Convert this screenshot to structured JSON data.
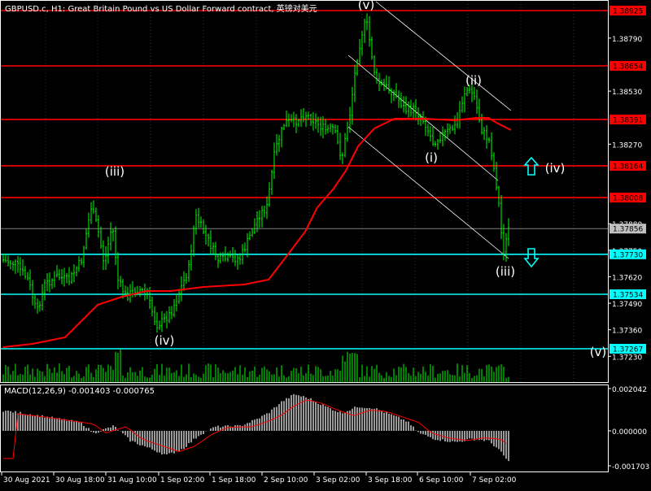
{
  "window": {
    "title": "GBPUSD.c, H1:  Great Britain Pound vs US Dollar Forward contract, 英镑对美元"
  },
  "colors": {
    "background": "#000000",
    "grid": "#ffffff",
    "candle": "#00ff00",
    "ma": "#ff0000",
    "resistance": "#ff0000",
    "support": "#00ffff",
    "channel": "#ffffff",
    "macd_hist": "#c0c0c0",
    "macd_signal": "#ff0000",
    "label_box": "#ffffff"
  },
  "price_axis": {
    "ticks": [
      "1.38925",
      "1.38790",
      "1.38654",
      "1.38530",
      "1.38391",
      "1.38270",
      "1.38164",
      "1.38008",
      "1.37880",
      "1.37856",
      "1.37750",
      "1.37730",
      "1.37620",
      "1.37534",
      "1.37490",
      "1.37360",
      "1.37267",
      "1.37230"
    ]
  },
  "price_labels": [
    {
      "text": "1.38925",
      "kind": "resistance"
    },
    {
      "text": "1.38654",
      "kind": "resistance"
    },
    {
      "text": "1.38391",
      "kind": "resistance"
    },
    {
      "text": "1.38164",
      "kind": "resistance"
    },
    {
      "text": "1.38008",
      "kind": "resistance"
    },
    {
      "text": "1.37856",
      "kind": "current"
    },
    {
      "text": "1.37730",
      "kind": "support"
    },
    {
      "text": "1.37534",
      "kind": "support"
    },
    {
      "text": "1.37267",
      "kind": "support"
    }
  ],
  "plain_ticks": [
    "1.38790",
    "1.38530",
    "1.38270",
    "1.37880",
    "1.37750",
    "1.37620",
    "1.37490",
    "1.37360",
    "1.37230"
  ],
  "wave_labels": [
    "(iii)",
    "(iv)",
    "(v)",
    "(i)",
    "(ii)",
    "(iii)",
    "(iv)",
    "(v)"
  ],
  "macd": {
    "label": "MACD(12,26,9) -0.001403 -0.000765",
    "ticks": [
      "0.002042",
      "0.000000",
      "-0.001703"
    ]
  },
  "time_axis": [
    "30 Aug 2021",
    "30 Aug 18:00",
    "31 Aug 10:00",
    "1 Sep 02:00",
    "1 Sep 18:00",
    "2 Sep 10:00",
    "3 Sep 02:00",
    "3 Sep 18:00",
    "6 Sep 10:00",
    "7 Sep 02:00"
  ]
}
